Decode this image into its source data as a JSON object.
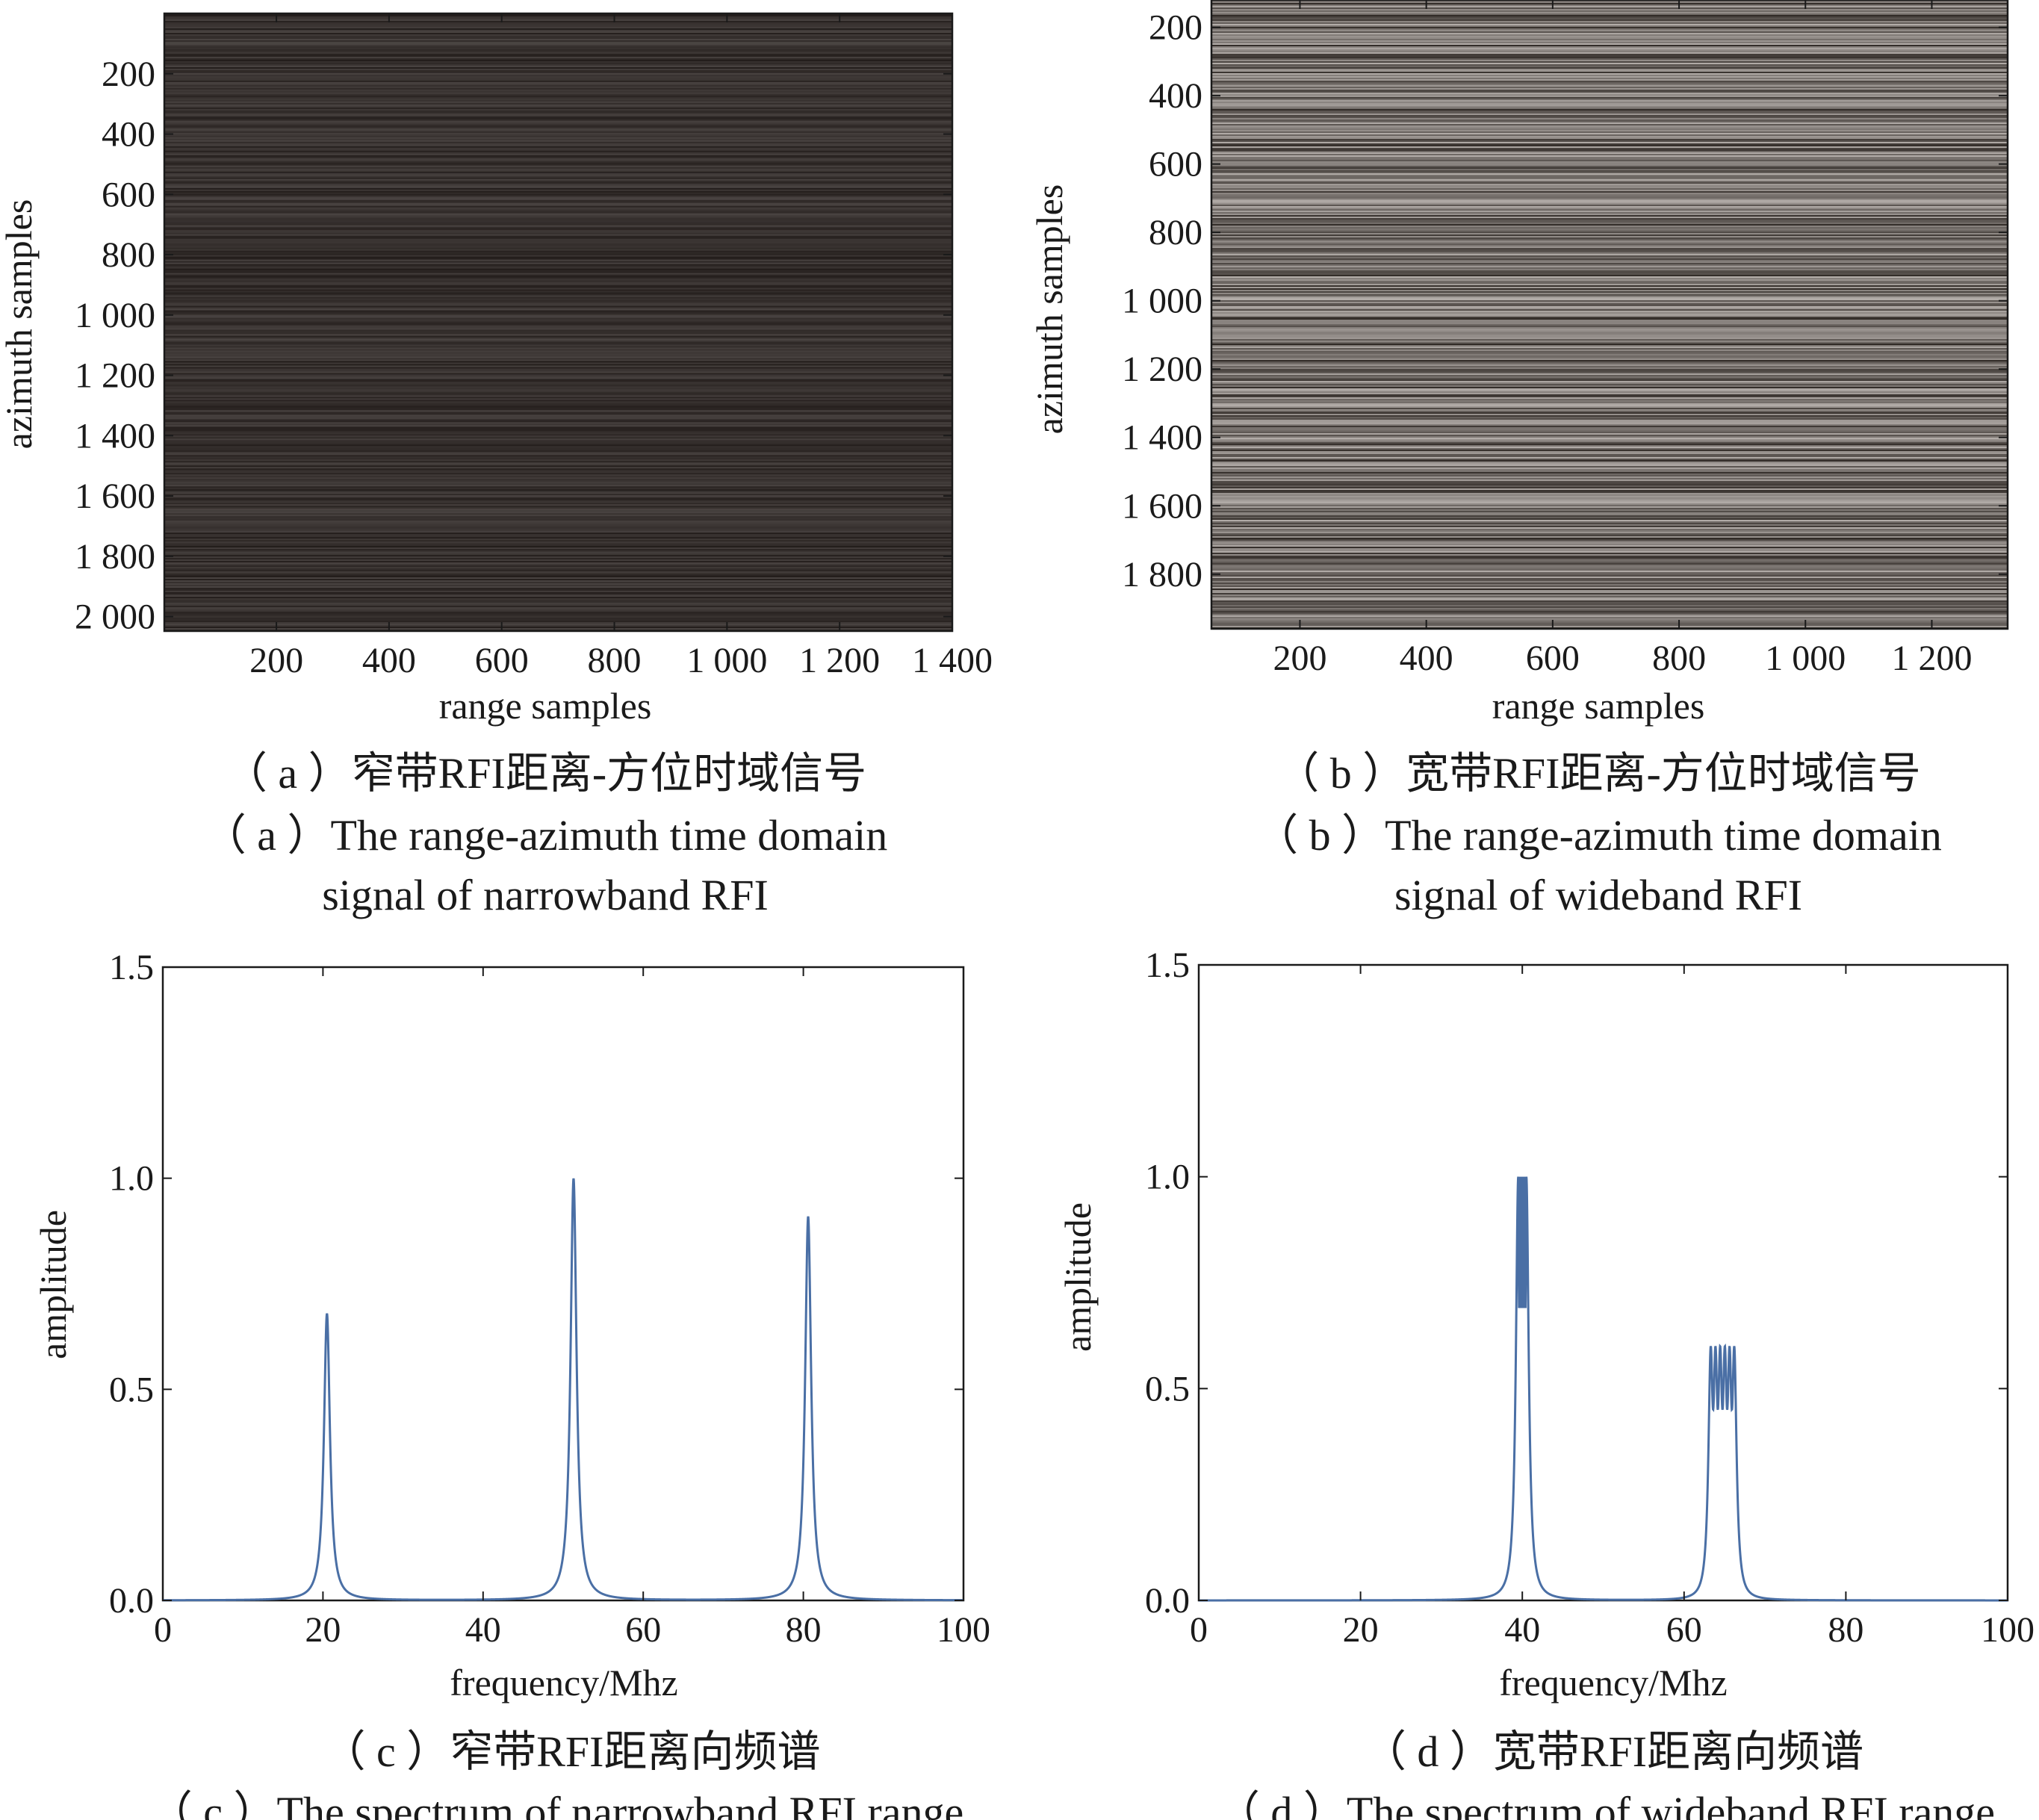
{
  "chart_data": [
    {
      "id": "a",
      "type": "heatmap",
      "xlabel": "range samples",
      "ylabel": "azimuth samples",
      "xlim": [
        1,
        1400
      ],
      "ylim": [
        0,
        2048
      ],
      "x_ticks": [
        200,
        400,
        600,
        800,
        1000,
        1200,
        1400
      ],
      "x_tick_labels": [
        "200",
        "400",
        "600",
        "800",
        "1 000",
        "1 200",
        "1 400"
      ],
      "y_ticks": [
        200,
        400,
        600,
        800,
        1000,
        1200,
        1400,
        1600,
        1800,
        2000
      ],
      "y_tick_labels": [
        "200",
        "400",
        "600",
        "800",
        "1 000",
        "1 200",
        "1 400",
        "1 600",
        "1 800",
        "2 000"
      ],
      "base_color": "#37312f",
      "stripe_contrast": 0.18,
      "caption_cn": "（ a ）窄带RFI距离-方位时域信号",
      "caption_en": [
        "（ a ）The range-azimuth time domain",
        "signal of narrowband RFI"
      ]
    },
    {
      "id": "b",
      "type": "heatmap",
      "xlabel": "range samples",
      "ylabel": "azimuth samples",
      "xlim": [
        60,
        1320
      ],
      "ylim": [
        120,
        1960
      ],
      "x_ticks": [
        200,
        400,
        600,
        800,
        1000,
        1200
      ],
      "x_tick_labels": [
        "200",
        "400",
        "600",
        "800",
        "1 000",
        "1 200"
      ],
      "y_ticks": [
        200,
        400,
        600,
        800,
        1000,
        1200,
        1400,
        1600,
        1800
      ],
      "y_tick_labels": [
        "200",
        "400",
        "600",
        "800",
        "1 000",
        "1 200",
        "1 400",
        "1 600",
        "1 800"
      ],
      "base_color": "#726c68",
      "stripe_contrast": 0.6,
      "caption_cn": "（ b ）宽带RFI距离-方位时域信号",
      "caption_en": [
        "（ b ）The range-azimuth time domain",
        "signal of wideband RFI"
      ]
    },
    {
      "id": "c",
      "type": "line",
      "xlabel": "frequency/Mhz",
      "ylabel": "amplitude",
      "xlim": [
        0,
        100
      ],
      "ylim": [
        0,
        1.5
      ],
      "x_ticks": [
        0,
        20,
        40,
        60,
        80,
        100
      ],
      "x_tick_labels": [
        "0",
        "20",
        "40",
        "60",
        "80",
        "100"
      ],
      "y_ticks": [
        0,
        0.5,
        1.0,
        1.5
      ],
      "y_tick_labels": [
        "0.0",
        "0.5",
        "1.0",
        "1.5"
      ],
      "line_color": "#4a6fa5",
      "peaks": [
        {
          "center": 20.5,
          "amplitude": 0.68
        },
        {
          "center": 51.3,
          "amplitude": 1.0
        },
        {
          "center": 80.6,
          "amplitude": 0.91
        }
      ],
      "peak_width": 0.45,
      "caption_cn": "（ c ）窄带RFI距离向频谱",
      "caption_en": [
        "（ c ）The spectrum of narrowband RFI range"
      ]
    },
    {
      "id": "d",
      "type": "line",
      "xlabel": "frequency/Mhz",
      "ylabel": "amplitude",
      "xlim": [
        0,
        100
      ],
      "ylim": [
        0,
        1.5
      ],
      "x_ticks": [
        0,
        20,
        40,
        60,
        80,
        100
      ],
      "x_tick_labels": [
        "0",
        "20",
        "40",
        "60",
        "80",
        "100"
      ],
      "y_ticks": [
        0,
        0.5,
        1.0,
        1.5
      ],
      "y_tick_labels": [
        "0.0",
        "0.5",
        "1.0",
        "1.5"
      ],
      "line_color": "#4a6fa5",
      "bands": [
        {
          "start": 39.5,
          "end": 40.5,
          "amplitude": 1.0,
          "ripple_min": 0.69
        },
        {
          "start": 63.3,
          "end": 66.2,
          "amplitude": 0.6,
          "ripple_min": 0.45
        }
      ],
      "caption_cn": "（ d ）宽带RFI距离向频谱",
      "caption_en": [
        "（ d ）The spectrum of wideband RFI range"
      ]
    }
  ]
}
